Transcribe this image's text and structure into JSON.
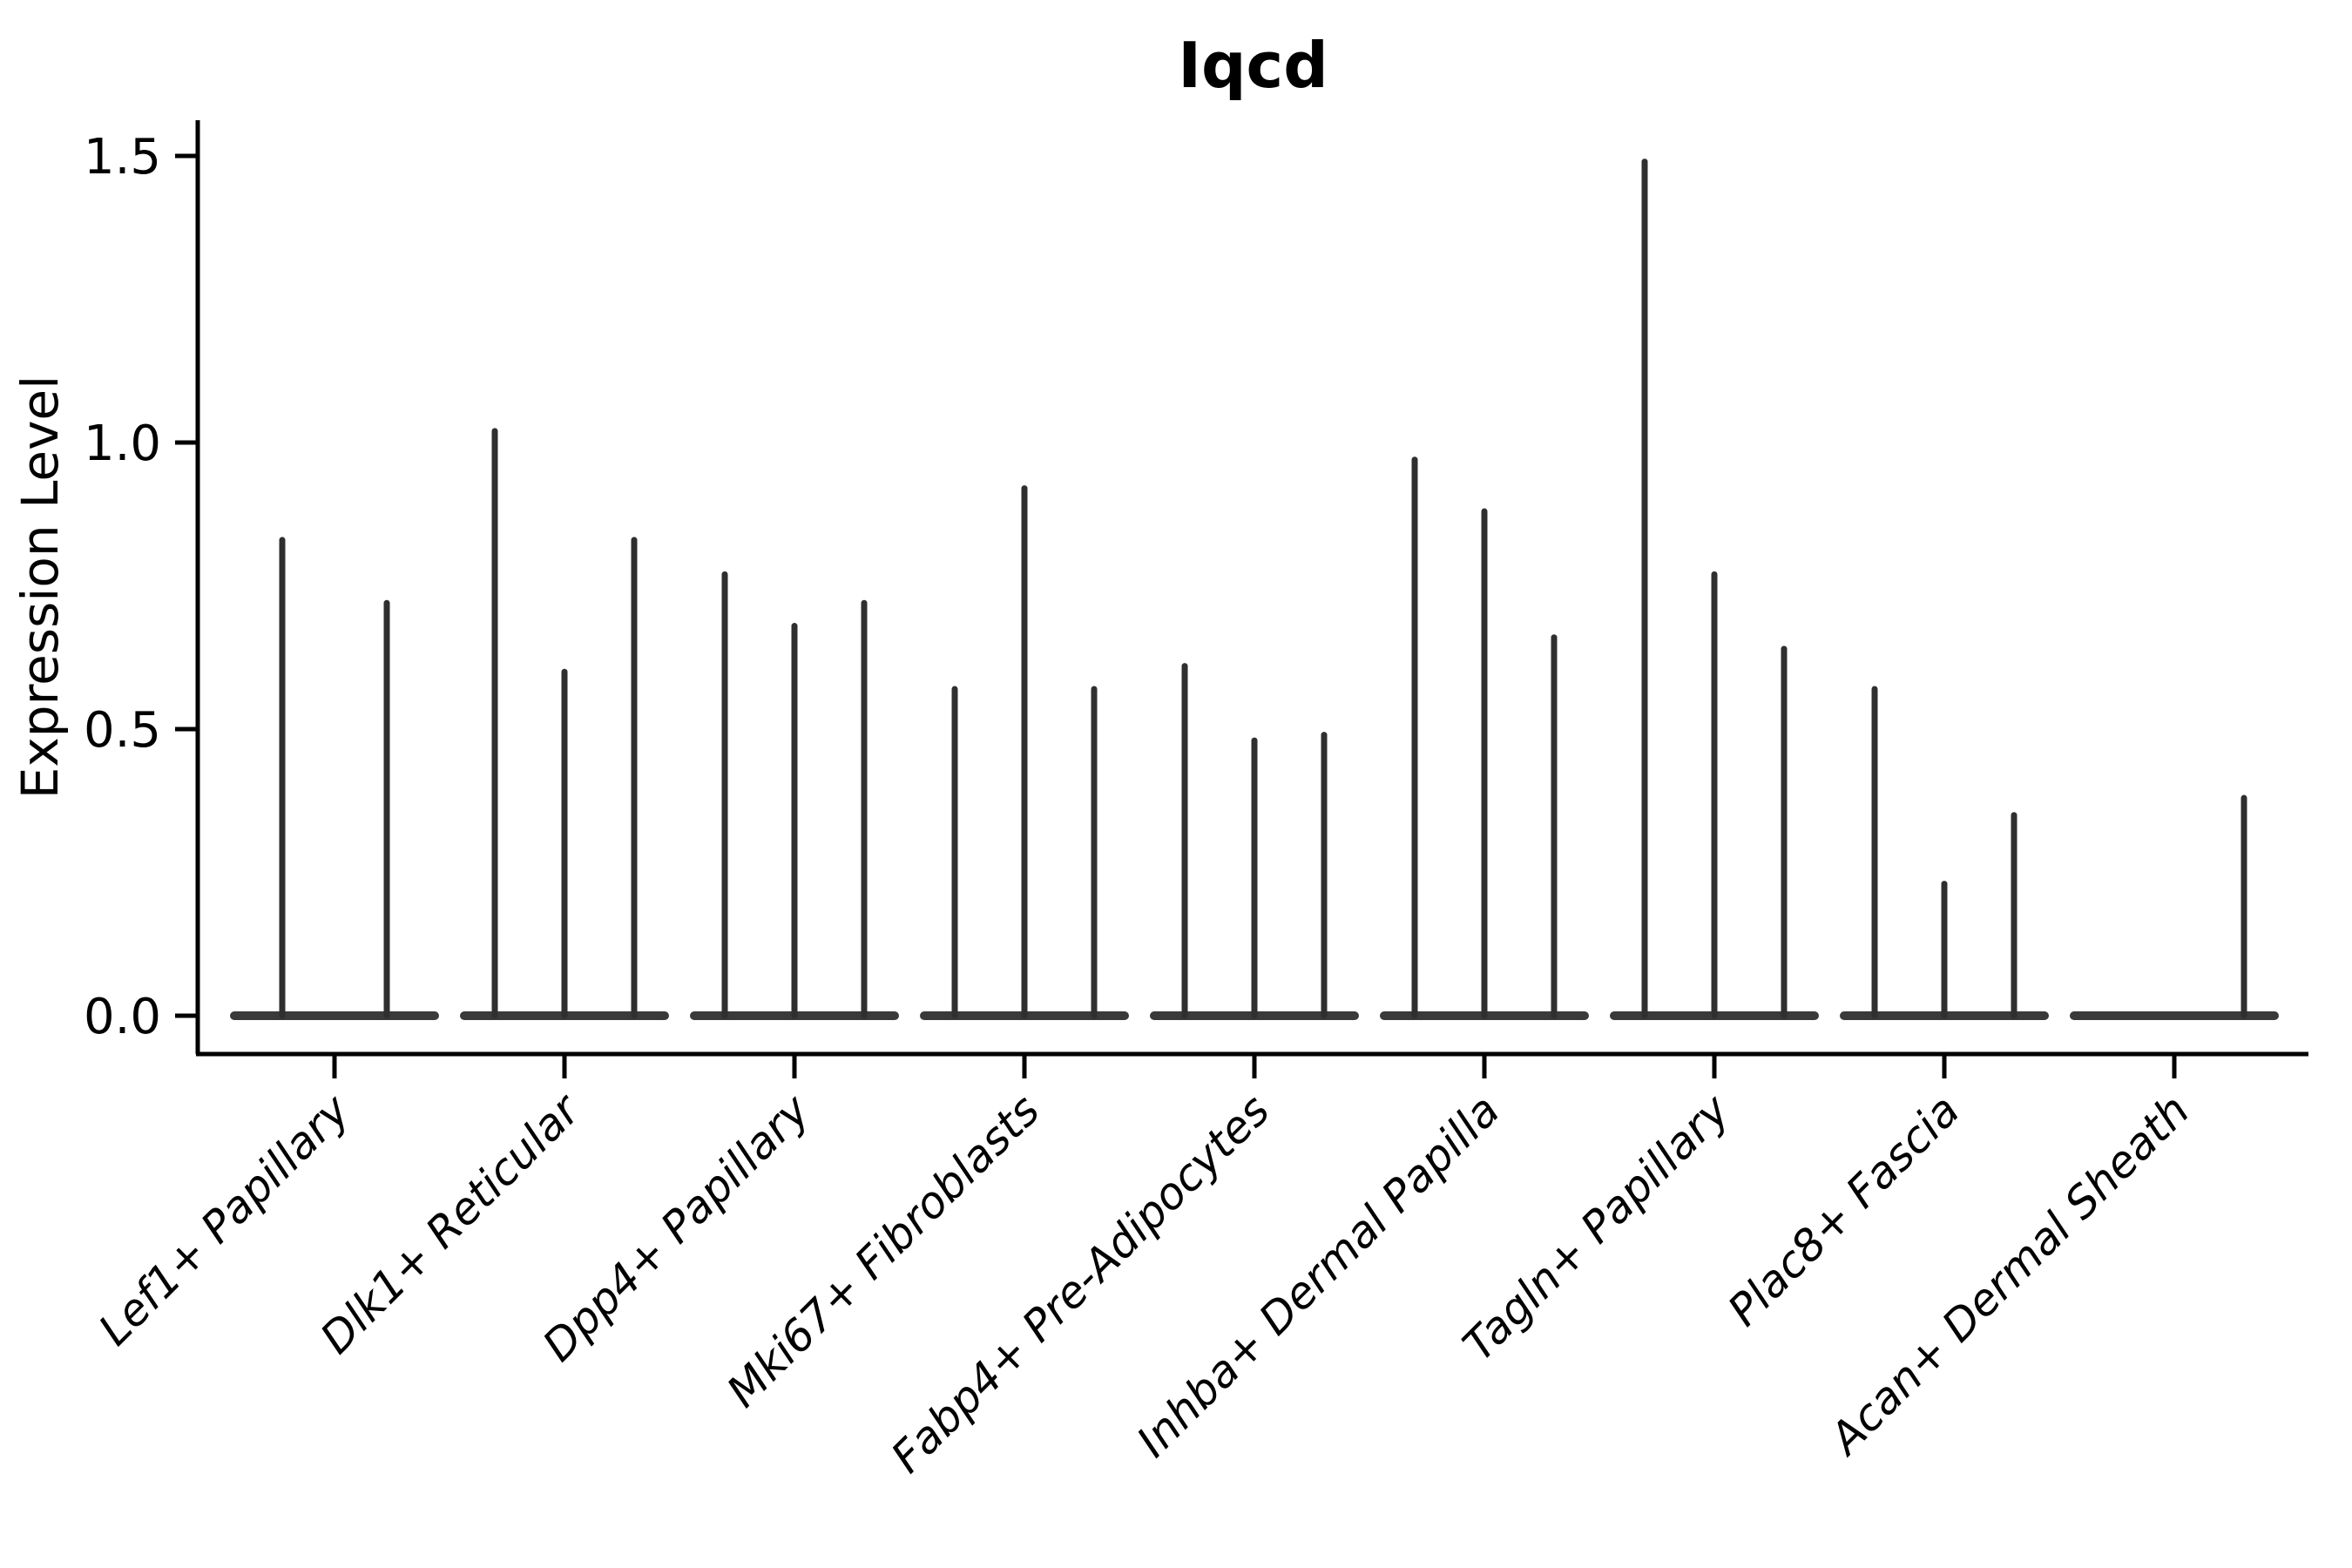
{
  "figure": {
    "background": "#ffffff",
    "axis_color": "#000000",
    "spike_color": "#2f2f2f",
    "baseline_color": "#3a3a3a"
  },
  "chart_data": {
    "type": "violin",
    "title": "Iqcd",
    "ylabel": "Expression Level",
    "ylim": [
      0,
      1.56
    ],
    "yticks": [
      {
        "label": "0.0",
        "value": 0.0
      },
      {
        "label": "0.5",
        "value": 0.5
      },
      {
        "label": "1.0",
        "value": 1.0
      },
      {
        "label": "1.5",
        "value": 1.5
      }
    ],
    "grid": false,
    "legend": "none",
    "note": "Each category shows collapsed violins rendered as a flat zero-baseline with thin density spikes; spike value = top of each violin tail.",
    "categories": [
      "Lef1+ Papillary",
      "Dlk1+ Reticular",
      "Dpp4+ Papillary",
      "Mki67+ Fibroblasts",
      "Fabp4+ Pre-Adipocytes",
      "Inhba+ Dermal Papilla",
      "Tagln+ Papillary",
      "Plac8+ Fascia",
      "Acan+ Dermal Sheath"
    ],
    "groups": [
      {
        "category": "Lef1+ Papillary",
        "spike_values": [
          0.83,
          0.72
        ]
      },
      {
        "category": "Dlk1+ Reticular",
        "spike_values": [
          1.02,
          0.6,
          0.83
        ]
      },
      {
        "category": "Dpp4+ Papillary",
        "spike_values": [
          0.77,
          0.68,
          0.72
        ]
      },
      {
        "category": "Mki67+ Fibroblasts",
        "spike_values": [
          0.57,
          0.92,
          0.57
        ]
      },
      {
        "category": "Fabp4+ Pre-Adipocytes",
        "spike_values": [
          0.61,
          0.48,
          0.49
        ]
      },
      {
        "category": "Inhba+ Dermal Papilla",
        "spike_values": [
          0.97,
          0.88,
          0.66
        ]
      },
      {
        "category": "Tagln+ Papillary",
        "spike_values": [
          1.49,
          0.77,
          0.64
        ]
      },
      {
        "category": "Plac8+ Fascia",
        "spike_values": [
          0.57,
          0.23,
          0.35
        ]
      },
      {
        "category": "Acan+ Dermal Sheath",
        "spike_values": [
          0.0,
          0.0,
          0.38
        ]
      }
    ]
  }
}
